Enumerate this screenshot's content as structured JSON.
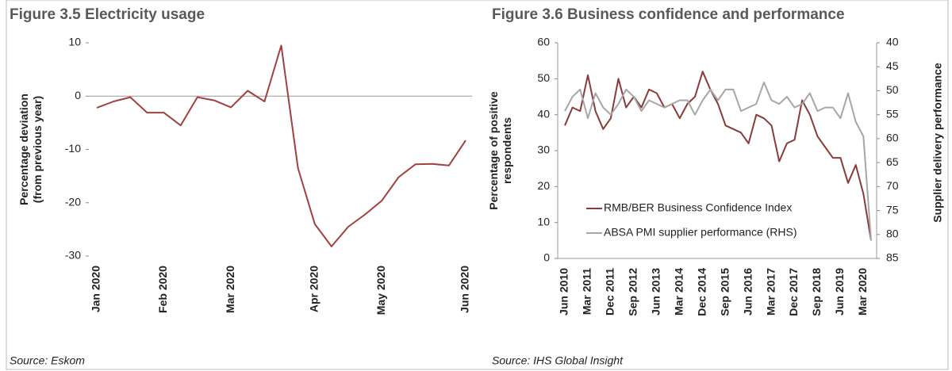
{
  "chart_data": [
    {
      "type": "line",
      "title": "Figure 3.5 Electricity usage",
      "ylabel": [
        "Percentage deviation",
        "(from previous year)"
      ],
      "categories": [
        "Jan 2020",
        null,
        null,
        null,
        "Feb 2020",
        null,
        null,
        null,
        "Mar 2020",
        null,
        null,
        null,
        null,
        "Apr 2020",
        null,
        null,
        null,
        "May 2020",
        null,
        null,
        null,
        null,
        "Jun 2020"
      ],
      "series": [
        {
          "name": "Electricity usage",
          "color": "#a0413f",
          "values": [
            -2.2,
            -1,
            -0.2,
            -3.1,
            -3.1,
            -5.5,
            -0.2,
            -0.8,
            -2.1,
            1,
            -1,
            9.5,
            -13.5,
            -24,
            -28.2,
            -24.5,
            -22.2,
            -19.6,
            -15.2,
            -12.8,
            -12.7,
            -13,
            -8.3
          ]
        }
      ],
      "ylim": [
        -30,
        10
      ],
      "yticks": [
        -30,
        -20,
        -10,
        0,
        10
      ],
      "source": "Source: Eskom"
    },
    {
      "type": "line",
      "title": "Figure 3.6 Business confidence and performance",
      "ylabel": [
        "Percentage of positive",
        "respondents"
      ],
      "y2label": "Supplier delivery performance",
      "categories": [
        "Jun 2010",
        null,
        null,
        "Mar 2011",
        null,
        null,
        "Dec 2011",
        null,
        null,
        "Sep 2012",
        null,
        null,
        "Jun 2013",
        null,
        null,
        "Mar 2014",
        null,
        null,
        "Dec 2014",
        null,
        null,
        "Sep 2015",
        null,
        null,
        "Jun 2016",
        null,
        null,
        "Mar 2017",
        null,
        null,
        "Dec 2017",
        null,
        null,
        "Sep 2018",
        null,
        null,
        "Jun 2019",
        null,
        null,
        "Mar 2020",
        null
      ],
      "series": [
        {
          "name": "RMB/BER Business Confidence Index",
          "color": "#8b3a3a",
          "values": [
            37,
            42,
            41,
            51,
            41,
            36,
            39,
            50,
            42,
            45,
            42,
            47,
            46,
            42,
            43,
            39,
            43,
            45,
            52,
            47,
            43,
            37,
            36,
            35,
            32,
            40,
            39,
            37,
            27,
            32,
            33,
            44,
            40,
            34,
            31,
            28,
            28,
            21,
            26,
            18,
            5
          ]
        },
        {
          "name": "ABSA PMI supplier performance (RHS)",
          "color": "#a6a6a6",
          "axis": "y2",
          "values": [
            54.25,
            51.25,
            49.75,
            55.75,
            50.5,
            53.5,
            55,
            52.75,
            49.75,
            51.25,
            54.25,
            52,
            52.75,
            53.5,
            52.75,
            52,
            52,
            55,
            52,
            49.75,
            52,
            49.75,
            49.75,
            54.25,
            53.5,
            52.75,
            48.25,
            52,
            52.75,
            51.25,
            53.5,
            52.75,
            50.5,
            54.25,
            53.5,
            53.5,
            55.75,
            50.5,
            56.5,
            59.5,
            81.25
          ]
        }
      ],
      "ylim": [
        0,
        60
      ],
      "yticks": [
        0,
        10,
        20,
        30,
        40,
        50,
        60
      ],
      "y2lim": [
        85,
        40
      ],
      "y2ticks": [
        40,
        45,
        50,
        55,
        60,
        65,
        70,
        75,
        80,
        85
      ],
      "legend": "lower left",
      "source": "Source: IHS Global Insight"
    }
  ]
}
